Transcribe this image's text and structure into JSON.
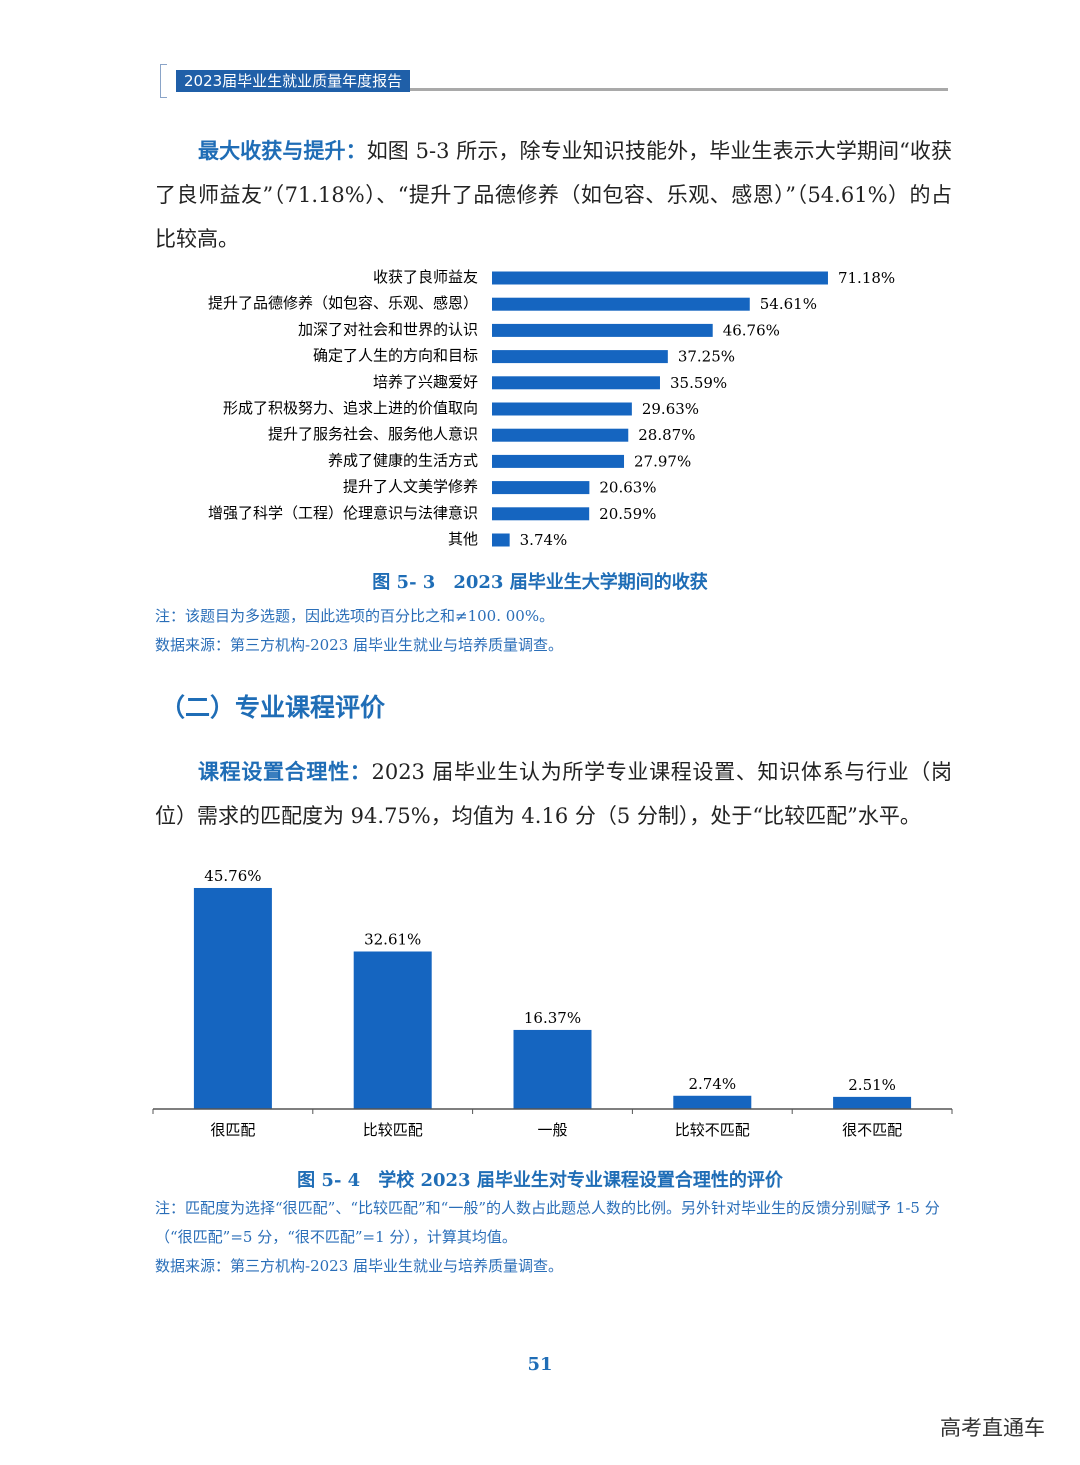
{
  "header": {
    "title": "2023届毕业生就业质量年度报告"
  },
  "intro": {
    "lead": "最大收获与提升：",
    "text": "如图 5-3 所示，除专业知识技能外，毕业生表示大学期间“收获了良师益友”（71.18%）、“提升了品德修养（如包容、乐观、感恩）”（54.61%）的占比较高。"
  },
  "section_heading": "（二）专业课程评价",
  "course": {
    "lead": "课程设置合理性：",
    "text": "2023 届毕业生认为所学专业课程设置、知识体系与行业（岗位）需求的匹配度为 94.75%，均值为 4.16 分（5 分制），处于“比较匹配”水平。"
  },
  "chart_data": [
    {
      "type": "bar",
      "orientation": "horizontal",
      "title": "图 5- 3　2023 届毕业生大学期间的收获",
      "color": "#1565c0",
      "categories": [
        "收获了良师益友",
        "提升了品德修养（如包容、乐观、感恩）",
        "加深了对社会和世界的认识",
        "确定了人生的方向和目标",
        "培养了兴趣爱好",
        "形成了积极努力、追求上进的价值取向",
        "提升了服务社会、服务他人意识",
        "养成了健康的生活方式",
        "提升了人文美学修养",
        "增强了科学（工程）伦理意识与法律意识",
        "其他"
      ],
      "values": [
        71.18,
        54.61,
        46.76,
        37.25,
        35.59,
        29.63,
        28.87,
        27.97,
        20.63,
        20.59,
        3.74
      ],
      "value_labels": [
        "71.18%",
        "54.61%",
        "46.76%",
        "37.25%",
        "35.59%",
        "29.63%",
        "28.87%",
        "27.97%",
        "20.63%",
        "20.59%",
        "3.74%"
      ],
      "notes": [
        "注：该题目为多选题，因此选项的百分比之和≠100. 00%。",
        "数据来源：第三方机构-2023 届毕业生就业与培养质量调查。"
      ]
    },
    {
      "type": "bar",
      "orientation": "vertical",
      "title": "图 5- 4　学校 2023 届毕业生对专业课程设置合理性的评价",
      "color": "#1565c0",
      "categories": [
        "很匹配",
        "比较匹配",
        "一般",
        "比较不匹配",
        "很不匹配"
      ],
      "values": [
        45.76,
        32.61,
        16.37,
        2.74,
        2.51
      ],
      "value_labels": [
        "45.76%",
        "32.61%",
        "16.37%",
        "2.74%",
        "2.51%"
      ],
      "notes": [
        "注：匹配度为选择“很匹配”、“比较匹配”和“一般”的人数占此题总人数的比例。另外针对毕业生的反馈分别赋予 1-5 分（“很匹配”=5 分，“很不匹配”=1 分），计算其均值。",
        "数据来源：第三方机构-2023 届毕业生就业与培养质量调查。"
      ]
    }
  ],
  "page_number": "51",
  "watermark": "高考直通车"
}
